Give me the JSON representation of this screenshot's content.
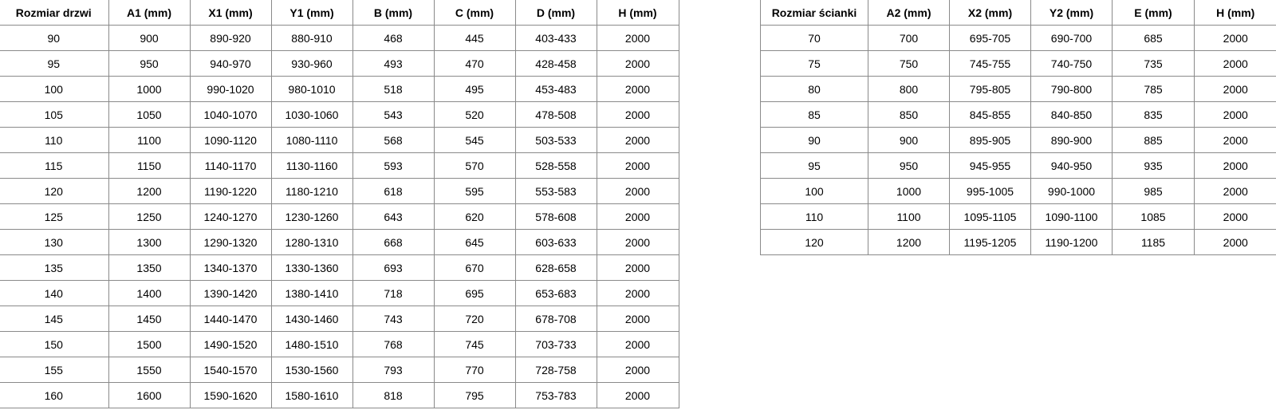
{
  "doors_table": {
    "headers": [
      "Rozmiar drzwi",
      "A1 (mm)",
      "X1 (mm)",
      "Y1 (mm)",
      "B (mm)",
      "C (mm)",
      "D (mm)",
      "H (mm)"
    ],
    "rows": [
      [
        "90",
        "900",
        "890-920",
        "880-910",
        "468",
        "445",
        "403-433",
        "2000"
      ],
      [
        "95",
        "950",
        "940-970",
        "930-960",
        "493",
        "470",
        "428-458",
        "2000"
      ],
      [
        "100",
        "1000",
        "990-1020",
        "980-1010",
        "518",
        "495",
        "453-483",
        "2000"
      ],
      [
        "105",
        "1050",
        "1040-1070",
        "1030-1060",
        "543",
        "520",
        "478-508",
        "2000"
      ],
      [
        "110",
        "1100",
        "1090-1120",
        "1080-1110",
        "568",
        "545",
        "503-533",
        "2000"
      ],
      [
        "115",
        "1150",
        "1140-1170",
        "1130-1160",
        "593",
        "570",
        "528-558",
        "2000"
      ],
      [
        "120",
        "1200",
        "1190-1220",
        "1180-1210",
        "618",
        "595",
        "553-583",
        "2000"
      ],
      [
        "125",
        "1250",
        "1240-1270",
        "1230-1260",
        "643",
        "620",
        "578-608",
        "2000"
      ],
      [
        "130",
        "1300",
        "1290-1320",
        "1280-1310",
        "668",
        "645",
        "603-633",
        "2000"
      ],
      [
        "135",
        "1350",
        "1340-1370",
        "1330-1360",
        "693",
        "670",
        "628-658",
        "2000"
      ],
      [
        "140",
        "1400",
        "1390-1420",
        "1380-1410",
        "718",
        "695",
        "653-683",
        "2000"
      ],
      [
        "145",
        "1450",
        "1440-1470",
        "1430-1460",
        "743",
        "720",
        "678-708",
        "2000"
      ],
      [
        "150",
        "1500",
        "1490-1520",
        "1480-1510",
        "768",
        "745",
        "703-733",
        "2000"
      ],
      [
        "155",
        "1550",
        "1540-1570",
        "1530-1560",
        "793",
        "770",
        "728-758",
        "2000"
      ],
      [
        "160",
        "1600",
        "1590-1620",
        "1580-1610",
        "818",
        "795",
        "753-783",
        "2000"
      ]
    ]
  },
  "wall_table": {
    "headers": [
      "Rozmiar ścianki",
      "A2 (mm)",
      "X2 (mm)",
      "Y2 (mm)",
      "E (mm)",
      "H (mm)"
    ],
    "rows": [
      [
        "70",
        "700",
        "695-705",
        "690-700",
        "685",
        "2000"
      ],
      [
        "75",
        "750",
        "745-755",
        "740-750",
        "735",
        "2000"
      ],
      [
        "80",
        "800",
        "795-805",
        "790-800",
        "785",
        "2000"
      ],
      [
        "85",
        "850",
        "845-855",
        "840-850",
        "835",
        "2000"
      ],
      [
        "90",
        "900",
        "895-905",
        "890-900",
        "885",
        "2000"
      ],
      [
        "95",
        "950",
        "945-955",
        "940-950",
        "935",
        "2000"
      ],
      [
        "100",
        "1000",
        "995-1005",
        "990-1000",
        "985",
        "2000"
      ],
      [
        "110",
        "1100",
        "1095-1105",
        "1090-1100",
        "1085",
        "2000"
      ],
      [
        "120",
        "1200",
        "1195-1205",
        "1190-1200",
        "1185",
        "2000"
      ]
    ]
  }
}
